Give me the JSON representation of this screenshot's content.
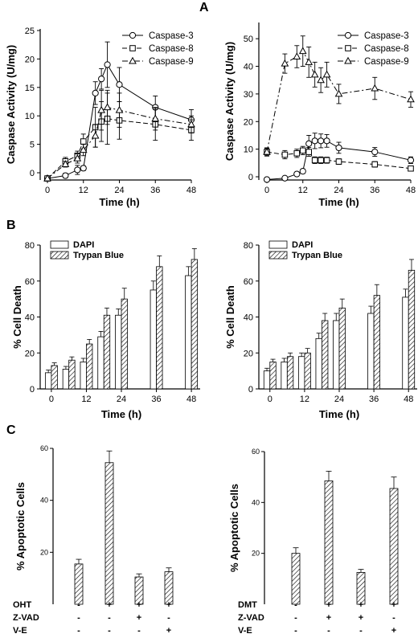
{
  "panel_labels": {
    "a": "A",
    "b": "B",
    "c": "C"
  },
  "colors": {
    "ink": "#000000",
    "background": "#ffffff",
    "hatch": "#000000",
    "open_bar": "#ffffff"
  },
  "chart_data": [
    {
      "id": "A-left",
      "type": "line",
      "xlabel": "Time (h)",
      "ylabel": "Caspase Activity (U/mg)",
      "xlim": [
        0,
        48
      ],
      "ylim": [
        0,
        25
      ],
      "xticks": [
        0,
        12,
        24,
        36,
        48
      ],
      "yticks": [
        0,
        5,
        10,
        15,
        20,
        25
      ],
      "legend_position": "top-right",
      "series": [
        {
          "name": "Caspase-3",
          "marker": "circle",
          "dash": "solid",
          "x": [
            0,
            6,
            10,
            12,
            16,
            18,
            20,
            24,
            36,
            48
          ],
          "y": [
            -1,
            -0.5,
            0.5,
            0.8,
            14,
            16.5,
            19,
            15.5,
            11.5,
            9.3
          ],
          "err": [
            0,
            0.4,
            0.8,
            0.4,
            2,
            1.8,
            4,
            3,
            2,
            1.8
          ]
        },
        {
          "name": "Caspase-8",
          "marker": "square",
          "dash": "dashed",
          "x": [
            0,
            6,
            10,
            12,
            16,
            18,
            20,
            24,
            36,
            48
          ],
          "y": [
            -1,
            2,
            3,
            5.5,
            8,
            9,
            9.5,
            9.2,
            8.5,
            7.5
          ],
          "err": [
            0,
            0.7,
            0.8,
            1.3,
            3.5,
            3.5,
            4.5,
            3.3,
            2.8,
            1.8
          ]
        },
        {
          "name": "Caspase-9",
          "marker": "triangle",
          "dash": "dashdot",
          "x": [
            0,
            6,
            10,
            12,
            16,
            18,
            20,
            24,
            36,
            48
          ],
          "y": [
            -1,
            1.5,
            2.5,
            4,
            6.5,
            11,
            11.5,
            11,
            9.5,
            8.5
          ],
          "err": [
            0,
            0.5,
            0.8,
            1,
            2,
            3.5,
            3,
            3,
            2,
            1.5
          ]
        }
      ]
    },
    {
      "id": "A-right",
      "type": "line",
      "xlabel": "Time (h)",
      "ylabel": "Caspase Activity (U/mg)",
      "xlim": [
        0,
        48
      ],
      "ylim": [
        0,
        55
      ],
      "xticks": [
        0,
        12,
        24,
        36,
        48
      ],
      "yticks": [
        0,
        10,
        20,
        30,
        40,
        50
      ],
      "legend_position": "top-right",
      "series": [
        {
          "name": "Caspase-3",
          "marker": "circle",
          "dash": "solid",
          "x": [
            0,
            6,
            10,
            12,
            14,
            16,
            18,
            20,
            24,
            36,
            48
          ],
          "y": [
            -1,
            -0.5,
            1,
            2,
            12,
            13,
            13,
            13,
            10.5,
            9,
            6
          ],
          "err": [
            0,
            0.3,
            0.5,
            0.8,
            3,
            2.8,
            2.5,
            2.3,
            2,
            1.6,
            1.2
          ]
        },
        {
          "name": "Caspase-8",
          "marker": "square",
          "dash": "dashed",
          "x": [
            0,
            6,
            10,
            12,
            14,
            16,
            18,
            20,
            24,
            36,
            48
          ],
          "y": [
            9,
            8,
            8.5,
            9.5,
            9,
            6,
            6,
            6,
            5.5,
            4.5,
            3
          ],
          "err": [
            1.2,
            1.5,
            1.5,
            1.5,
            1.6,
            1.2,
            1.2,
            1.1,
            1,
            1,
            0.8
          ]
        },
        {
          "name": "Caspase-9",
          "marker": "triangle",
          "dash": "dashdot",
          "x": [
            0,
            6,
            10,
            12,
            14,
            16,
            18,
            20,
            24,
            36,
            48
          ],
          "y": [
            9,
            41,
            43.5,
            45.5,
            41.5,
            37,
            35,
            37,
            30,
            32,
            28
          ],
          "err": [
            1.5,
            3.5,
            4,
            5.5,
            5.5,
            4.5,
            4.5,
            4.5,
            3.5,
            4,
            2.8
          ]
        }
      ]
    },
    {
      "id": "B-left",
      "type": "bar",
      "xlabel": "Time (h)",
      "ylabel": "% Cell Death",
      "ylim": [
        0,
        80
      ],
      "xlim": [
        -3,
        51
      ],
      "xticks": [
        0,
        12,
        24,
        36,
        48
      ],
      "yticks": [
        0,
        20,
        40,
        60,
        80
      ],
      "legend_position": "top-left",
      "x": [
        0,
        6,
        12,
        18,
        24,
        36,
        48
      ],
      "series": [
        {
          "name": "DAPI",
          "fill": "open",
          "values": [
            9,
            11,
            15,
            29,
            41,
            55,
            63
          ],
          "err": [
            1.5,
            1.5,
            2,
            3,
            3.5,
            5,
            5
          ]
        },
        {
          "name": "Trypan Blue",
          "fill": "hatched",
          "values": [
            13,
            16,
            25,
            41,
            50,
            68,
            72
          ],
          "err": [
            1.5,
            1.8,
            2.5,
            4,
            6,
            6,
            6
          ]
        }
      ]
    },
    {
      "id": "B-right",
      "type": "bar",
      "xlabel": "Time (h)",
      "ylabel": "% Cell Death",
      "ylim": [
        0,
        80
      ],
      "xlim": [
        -3,
        51
      ],
      "xticks": [
        0,
        12,
        24,
        36,
        48
      ],
      "yticks": [
        0,
        20,
        40,
        60,
        80
      ],
      "legend_position": "top-left",
      "x": [
        0,
        6,
        12,
        18,
        24,
        36,
        48
      ],
      "series": [
        {
          "name": "DAPI",
          "fill": "open",
          "values": [
            10,
            15,
            18,
            28,
            38,
            42,
            51
          ],
          "err": [
            1.5,
            2,
            2,
            3,
            4,
            4,
            4.5
          ]
        },
        {
          "name": "Trypan Blue",
          "fill": "hatched",
          "values": [
            15,
            18,
            20,
            38,
            45,
            52,
            66
          ],
          "err": [
            1.5,
            2,
            2.5,
            4,
            5,
            6,
            6
          ]
        }
      ]
    },
    {
      "id": "C-left",
      "type": "bar",
      "ylabel": "% Apoptotic Cells",
      "ylim": [
        0,
        60
      ],
      "yticks": [
        20,
        40,
        60
      ],
      "values": [
        15.5,
        54.5,
        10.5,
        12.5
      ],
      "err": [
        1.8,
        4.5,
        1.2,
        1.5
      ],
      "treatment_rows": [
        {
          "label": "OHT",
          "marks": [
            "-",
            "+",
            "+",
            "+"
          ]
        },
        {
          "label": "Z-VAD",
          "marks": [
            "-",
            "-",
            "+",
            "-"
          ]
        },
        {
          "label": "V-E",
          "marks": [
            "-",
            "-",
            "-",
            "+"
          ]
        }
      ]
    },
    {
      "id": "C-right",
      "type": "bar",
      "ylabel": "% Apoptotic Cells",
      "ylim": [
        0,
        60
      ],
      "yticks": [
        20,
        40,
        60
      ],
      "values": [
        20,
        48.5,
        12.5,
        45.5
      ],
      "err": [
        2.2,
        3.8,
        1.2,
        4.5
      ],
      "treatment_rows": [
        {
          "label": "DMT",
          "marks": [
            "-",
            "+",
            "+",
            "+"
          ]
        },
        {
          "label": "Z-VAD",
          "marks": [
            "-",
            "+",
            "+",
            "-"
          ]
        },
        {
          "label": "V-E",
          "marks": [
            "-",
            "-",
            "-",
            "+"
          ]
        }
      ]
    }
  ]
}
